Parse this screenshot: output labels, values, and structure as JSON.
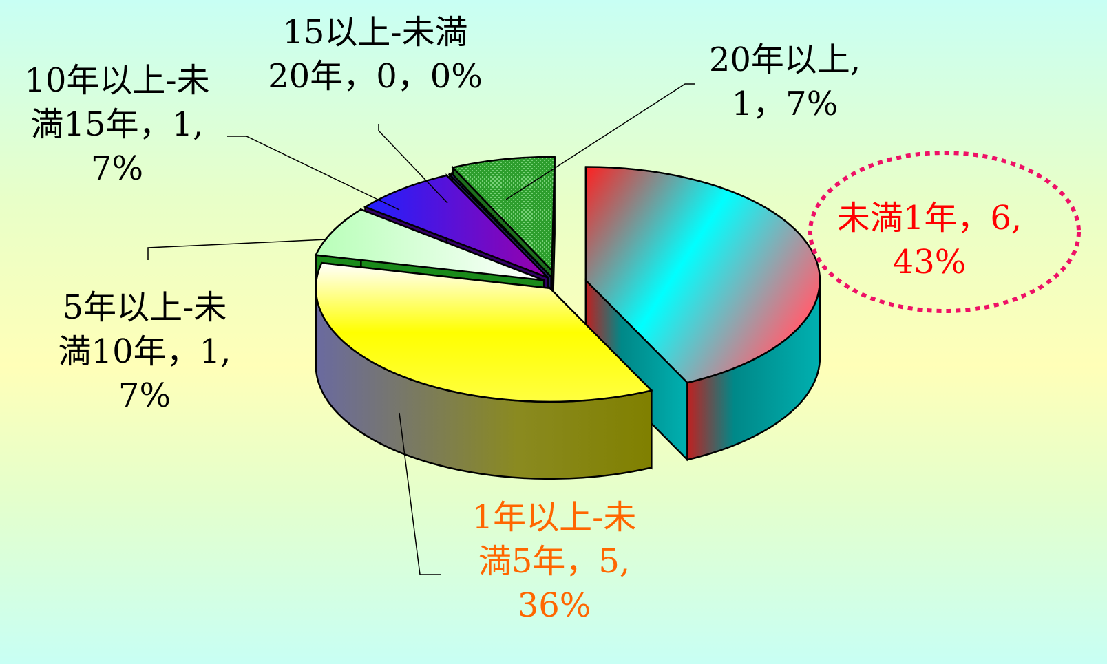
{
  "chart_data": {
    "type": "pie",
    "style": "3d-exploded",
    "categories": [
      "未満1年",
      "1年以上-未満5年",
      "5年以上-未満10年",
      "10年以上-未満15年",
      "15以上-未満20年",
      "20年以上"
    ],
    "values": [
      6,
      5,
      1,
      1,
      0,
      1
    ],
    "percents": [
      "43%",
      "36%",
      "7%",
      "7%",
      "0%",
      "7%"
    ],
    "data_labels": [
      "未満1年，6,\n43%",
      "1年以上-未\n満5年，5,\n36%",
      "5年以上-未\n満10年，1,\n7%",
      "10年以上-未\n満15年，1,\n7%",
      "15以上-未満\n20年，0，0%",
      "20年以上,\n1，7%"
    ],
    "colors": {
      "slice_0": "#00ffff",
      "slice_1": "#ffff00",
      "slice_2": "#ccffcc",
      "slice_3": "#6600cc",
      "slice_4": "#333399",
      "slice_5": "#33aa33",
      "label_highlight": "#ff0000",
      "label_accent": "#ff6600",
      "highlight_ring": "#ee1166"
    },
    "highlighted_category": "未満1年"
  }
}
